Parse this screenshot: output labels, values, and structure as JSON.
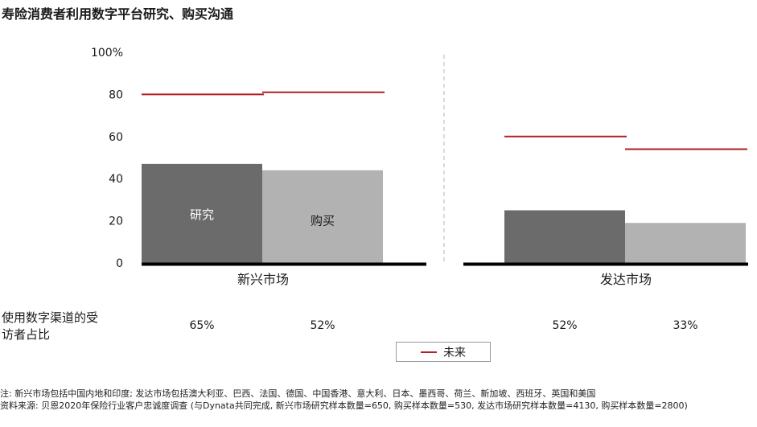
{
  "title": "寿险消费者利用数字平台研究、购买沟通",
  "share_label": "使用数字渠道的受访者占比",
  "legend": {
    "label": "未来",
    "color": "#b21f24"
  },
  "footnotes": {
    "note": "注: 新兴市场包括中国内地和印度; 发达市场包括澳大利亚、巴西、法国、德国、中国香港、意大利、日本、墨西哥、荷兰、新加坡、西班牙、英国和美国",
    "source": "资料来源: 贝恩2020年保险行业客户忠诚度调查 (与Dynata共同完成, 新兴市场研究样本数量=650, 购买样本数量=530, 发达市场研究样本数量=4130, 购买样本数量=2800)"
  },
  "chart_data": {
    "type": "bar",
    "y_ticks": [
      "0",
      "20",
      "40",
      "60",
      "80",
      "100%"
    ],
    "ylim": [
      0,
      100
    ],
    "grid": false,
    "groups": [
      "新兴市场",
      "发达市场"
    ],
    "series": [
      {
        "name": "研究",
        "color": "#6b6b6b",
        "values": [
          47,
          25
        ]
      },
      {
        "name": "购买",
        "color": "#b2b2b2",
        "values": [
          44,
          19
        ]
      }
    ],
    "future": {
      "name": "未来",
      "color": "#b21f24",
      "values": [
        [
          80,
          81
        ],
        [
          60,
          54
        ]
      ]
    },
    "bar_labels": [
      [
        "研究",
        "购买"
      ],
      [
        "",
        ""
      ]
    ],
    "digital_share": [
      "65%",
      "52%",
      "52%",
      "33%"
    ]
  }
}
